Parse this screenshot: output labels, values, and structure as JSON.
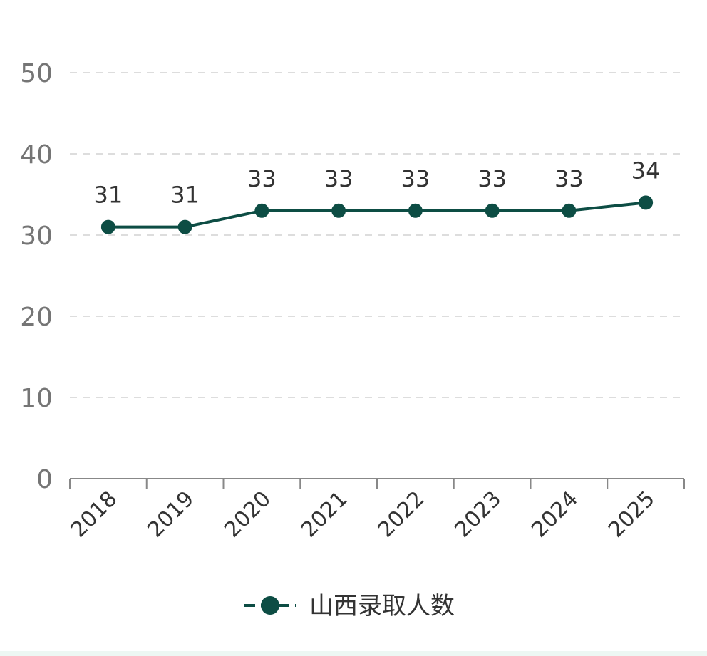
{
  "chart_data": {
    "type": "line",
    "categories": [
      "2018",
      "2019",
      "2020",
      "2021",
      "2022",
      "2023",
      "2024",
      "2025"
    ],
    "series": [
      {
        "name": "山西录取人数",
        "values": [
          31,
          31,
          33,
          33,
          33,
          33,
          33,
          34
        ]
      }
    ],
    "ylim": [
      0,
      50
    ],
    "yticks": [
      0,
      10,
      20,
      30,
      40,
      50
    ],
    "grid": true,
    "grid_style": "dashed",
    "legend_position": "bottom",
    "data_labels": true,
    "colors": {
      "series": "#0d4d44",
      "grid": "#dddddd",
      "axis": "#888888",
      "tick_text": "#757575"
    }
  }
}
